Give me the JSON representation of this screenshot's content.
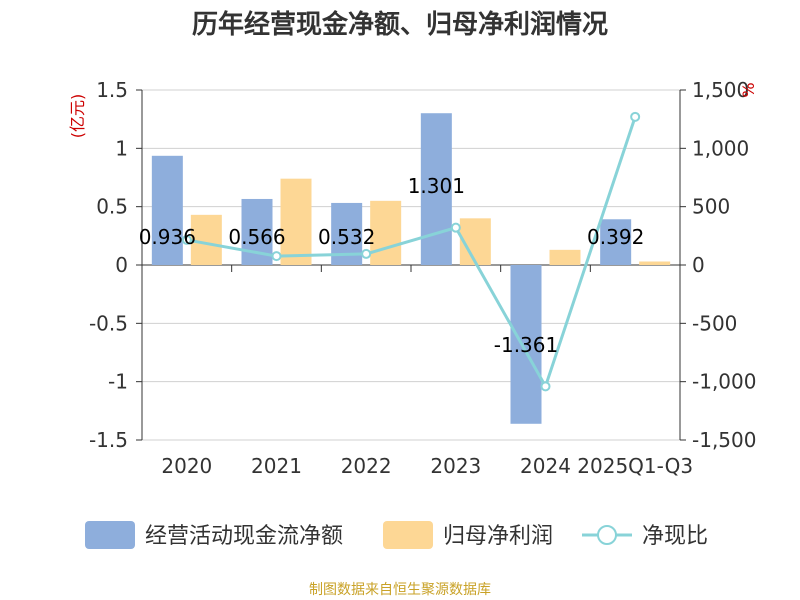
{
  "chart_data": {
    "type": "bar",
    "title": "历年经营现金净额、归母净利润情况",
    "categories": [
      "2020",
      "2021",
      "2022",
      "2023",
      "2024",
      "2025Q1-Q3"
    ],
    "left_axis": {
      "unit_label": "(亿元)",
      "ylim": [
        -1.5,
        1.5
      ],
      "ticks": [
        1.5,
        1,
        0.5,
        0,
        -0.5,
        -1,
        -1.5
      ],
      "tick_labels": [
        "1.5",
        "1",
        "0.5",
        "0",
        "-0.5",
        "-1",
        "-1.5"
      ]
    },
    "right_axis": {
      "unit_label": "%",
      "ylim": [
        -1500,
        1500
      ],
      "ticks": [
        1500,
        1000,
        500,
        0,
        -500,
        -1000,
        -1500
      ],
      "tick_labels": [
        "1,500",
        "1,000",
        "500",
        "0",
        "-500",
        "-1,000",
        "-1,500"
      ]
    },
    "series": [
      {
        "name": "经营活动现金流净额",
        "type": "bar",
        "axis": "left",
        "color": "#8eaedc",
        "values": [
          0.936,
          0.566,
          0.532,
          1.301,
          -1.361,
          0.392
        ],
        "labels": [
          "0.936",
          "0.566",
          "0.532",
          "1.301",
          "-1.361",
          "0.392"
        ]
      },
      {
        "name": "归母净利润",
        "type": "bar",
        "axis": "left",
        "color": "#fdd795",
        "values": [
          0.43,
          0.74,
          0.55,
          0.4,
          0.13,
          0.03
        ]
      },
      {
        "name": "净现比",
        "type": "line",
        "axis": "right",
        "color": "#88d3d8",
        "values": [
          215,
          76,
          95,
          320,
          -1040,
          1270
        ]
      }
    ],
    "grid": true,
    "legend_position": "bottom"
  },
  "source_text": "制图数据来自恒生聚源数据库"
}
